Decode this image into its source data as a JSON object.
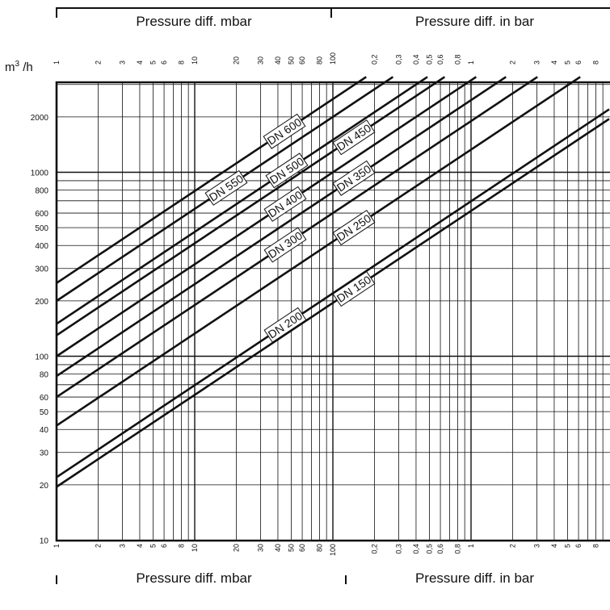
{
  "headers": {
    "top_left": "Pressure diff. mbar",
    "top_right": "Pressure diff. in bar",
    "bottom_left": "Pressure diff. mbar",
    "bottom_right": "Pressure diff. in bar"
  },
  "chart_data": {
    "type": "line",
    "x_scale": "log",
    "y_scale": "log",
    "xlim": [
      1,
      10000
    ],
    "ylim": [
      10,
      3200
    ],
    "x_units": "mbar",
    "ylabel": "m³/h",
    "x_ticks_mbar": [
      1,
      2,
      3,
      4,
      5,
      6,
      8,
      10,
      20,
      30,
      40,
      50,
      60,
      80,
      100,
      200,
      300,
      400,
      500,
      600,
      800,
      1000,
      2000,
      3000,
      4000,
      5000,
      6000,
      8000
    ],
    "x_tick_labels": [
      "1",
      "2",
      "3",
      "4",
      "5",
      "6",
      "8",
      "10",
      "20",
      "30",
      "40",
      "50",
      "60",
      "80",
      "100",
      "0,2",
      "0,3",
      "0,4",
      "0,5",
      "0,6",
      "0,8",
      "1",
      "2",
      "3",
      "4",
      "5",
      "6",
      "8"
    ],
    "y_ticks": [
      10,
      20,
      30,
      40,
      50,
      60,
      80,
      100,
      200,
      300,
      400,
      500,
      600,
      800,
      1000,
      2000
    ],
    "y_tick_labels": [
      "10",
      "20",
      "30",
      "40",
      "50",
      "60",
      "80",
      "100",
      "200",
      "300",
      "400",
      "500",
      "600",
      "800",
      "1000",
      "2000"
    ],
    "grid": true,
    "series": [
      {
        "name": "DN 600",
        "flow_at_1_mbar": 250
      },
      {
        "name": "DN 550",
        "flow_at_1_mbar": 200
      },
      {
        "name": "DN 500",
        "flow_at_1_mbar": 150
      },
      {
        "name": "DN 450",
        "flow_at_1_mbar": 130
      },
      {
        "name": "DN 400",
        "flow_at_1_mbar": 100
      },
      {
        "name": "DN 350",
        "flow_at_1_mbar": 78
      },
      {
        "name": "DN 300",
        "flow_at_1_mbar": 60
      },
      {
        "name": "DN 250",
        "flow_at_1_mbar": 42
      },
      {
        "name": "DN 200",
        "flow_at_1_mbar": 22
      },
      {
        "name": "DN 150",
        "flow_at_1_mbar": 19.5
      }
    ]
  }
}
